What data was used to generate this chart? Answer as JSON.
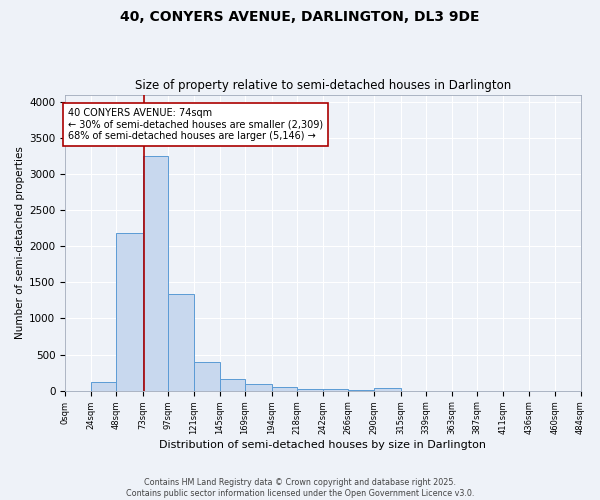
{
  "title1": "40, CONYERS AVENUE, DARLINGTON, DL3 9DE",
  "title2": "Size of property relative to semi-detached houses in Darlington",
  "xlabel": "Distribution of semi-detached houses by size in Darlington",
  "ylabel": "Number of semi-detached properties",
  "bin_edges": [
    0,
    24,
    48,
    73,
    97,
    121,
    145,
    169,
    194,
    218,
    242,
    266,
    290,
    315,
    339,
    363,
    387,
    411,
    436,
    460,
    484
  ],
  "bin_values": [
    0,
    120,
    2180,
    3250,
    1340,
    400,
    160,
    95,
    55,
    30,
    20,
    10,
    40,
    0,
    0,
    0,
    0,
    0,
    0,
    0
  ],
  "bar_color": "#c8d8ee",
  "bar_edge_color": "#5b9bd5",
  "property_size": 74,
  "vline_color": "#aa0000",
  "annotation_text": "40 CONYERS AVENUE: 74sqm\n← 30% of semi-detached houses are smaller (2,309)\n68% of semi-detached houses are larger (5,146) →",
  "annotation_box_color": "#ffffff",
  "annotation_box_edge": "#aa0000",
  "footer": "Contains HM Land Registry data © Crown copyright and database right 2025.\nContains public sector information licensed under the Open Government Licence v3.0.",
  "ylim": [
    0,
    4100
  ],
  "background_color": "#eef2f8",
  "grid_color": "#ffffff",
  "yticks": [
    0,
    500,
    1000,
    1500,
    2000,
    2500,
    3000,
    3500,
    4000
  ]
}
